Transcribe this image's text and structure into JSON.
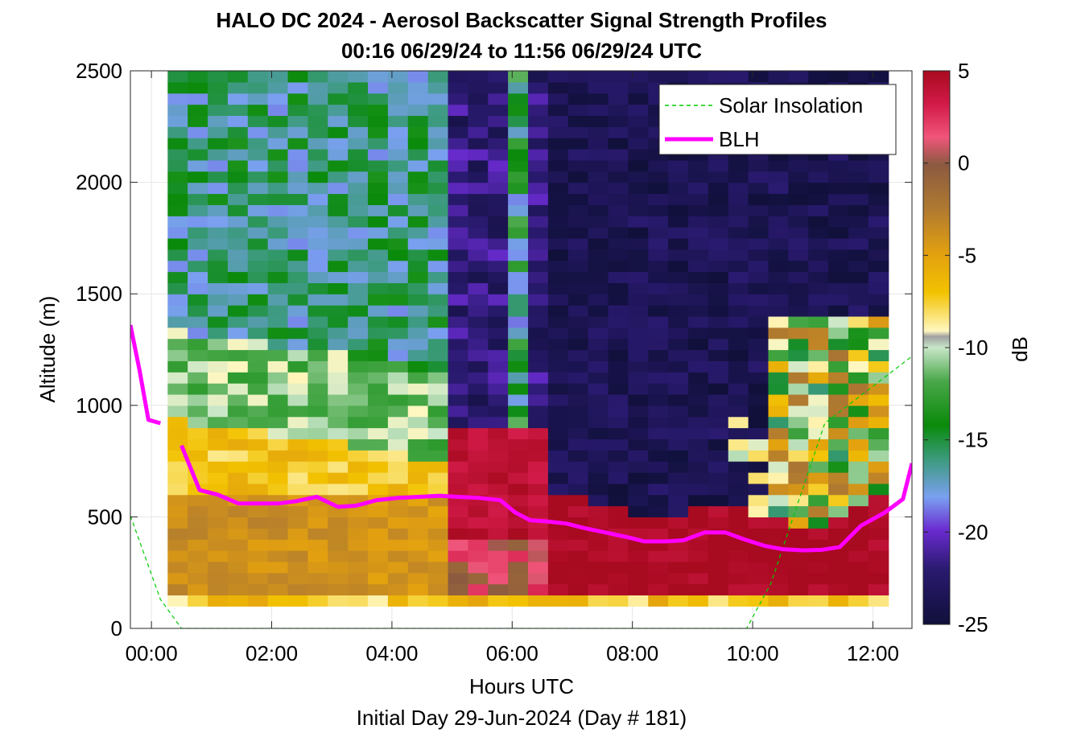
{
  "chart_data": {
    "type": "heatmap",
    "title": "HALO DC 2024 - Aerosol Backscatter Signal Strength Profiles",
    "subtitle": "00:16 06/29/24 to 11:56 06/29/24  UTC",
    "xlabel": "Hours UTC",
    "ylabel": "Altitude (m)",
    "footer": "Initial Day 29-Jun-2024 (Day # 181)",
    "xlim": [
      -0.35,
      12.65
    ],
    "ylim": [
      0,
      2500
    ],
    "x_ticks": [
      0,
      2,
      4,
      6,
      8,
      10,
      12
    ],
    "x_tick_labels": [
      "00:00",
      "02:00",
      "04:00",
      "06:00",
      "08:00",
      "10:00",
      "12:00"
    ],
    "y_ticks": [
      0,
      500,
      1000,
      1500,
      2000,
      2500
    ],
    "y_tick_labels": [
      "0",
      "500",
      "1000",
      "1500",
      "2000",
      "2500"
    ],
    "grid": true,
    "colorbar": {
      "label": "dB",
      "range": [
        -25,
        5
      ],
      "ticks": [
        5,
        0,
        -5,
        -10,
        -15,
        -20,
        -25
      ],
      "tick_labels": [
        "5",
        "0",
        "-5",
        "-10",
        "-15",
        "-20",
        "-25"
      ]
    },
    "heatmap": {
      "x_start": 0.27,
      "x_end": 11.93,
      "y_start": 100,
      "y_end": 2500,
      "col_width_hours": 0.333,
      "row_height_m": 50,
      "pattern": "backscatter dB by time and altitude: dense aerosol layer (-5 to -8 dB) below ~900 m during 00:16-05:00, green/cyan aloft (-15 to -19 dB); strong return (+3 to +5 dB) near 100-900 m after 05:00 rising with boundary layer; clear air (-24 to -25 dB) aloft after 06:30"
    },
    "legend": {
      "position": "top-right",
      "entries": [
        "Solar Insolation",
        "BLH"
      ]
    },
    "series": [
      {
        "name": "BLH",
        "color": "#ff00ff",
        "segments": [
          {
            "x": [
              -0.35,
              -0.2,
              -0.05,
              0.15
            ],
            "y": [
              1360,
              1160,
              935,
              920
            ]
          },
          {
            "x": [
              0.5,
              0.8,
              1.1,
              1.45,
              1.75,
              2.1,
              2.4,
              2.75,
              3.1,
              3.4,
              3.75,
              4.1,
              4.45,
              4.8,
              5.1,
              5.45,
              5.8,
              6.05,
              6.3,
              6.55,
              6.9,
              7.2,
              7.55,
              7.9,
              8.2,
              8.55,
              8.85,
              9.2,
              9.55,
              9.85,
              10.2,
              10.5,
              10.85,
              11.15,
              11.45,
              11.8,
              12.2,
              12.5,
              12.65
            ],
            "y": [
              820,
              620,
              600,
              560,
              560,
              560,
              570,
              590,
              545,
              550,
              575,
              585,
              590,
              595,
              590,
              585,
              575,
              520,
              485,
              480,
              470,
              450,
              430,
              410,
              390,
              390,
              395,
              430,
              430,
              400,
              370,
              355,
              350,
              352,
              365,
              460,
              520,
              580,
              740
            ]
          }
        ]
      },
      {
        "name": "Solar Insolation",
        "color": "#00cc00",
        "style": "dashed",
        "x": [
          -0.35,
          0.15,
          0.5,
          9.9,
          10.3,
          11.2,
          12.65
        ],
        "y": [
          505,
          130,
          0,
          0,
          200,
          920,
          1220
        ]
      }
    ]
  }
}
